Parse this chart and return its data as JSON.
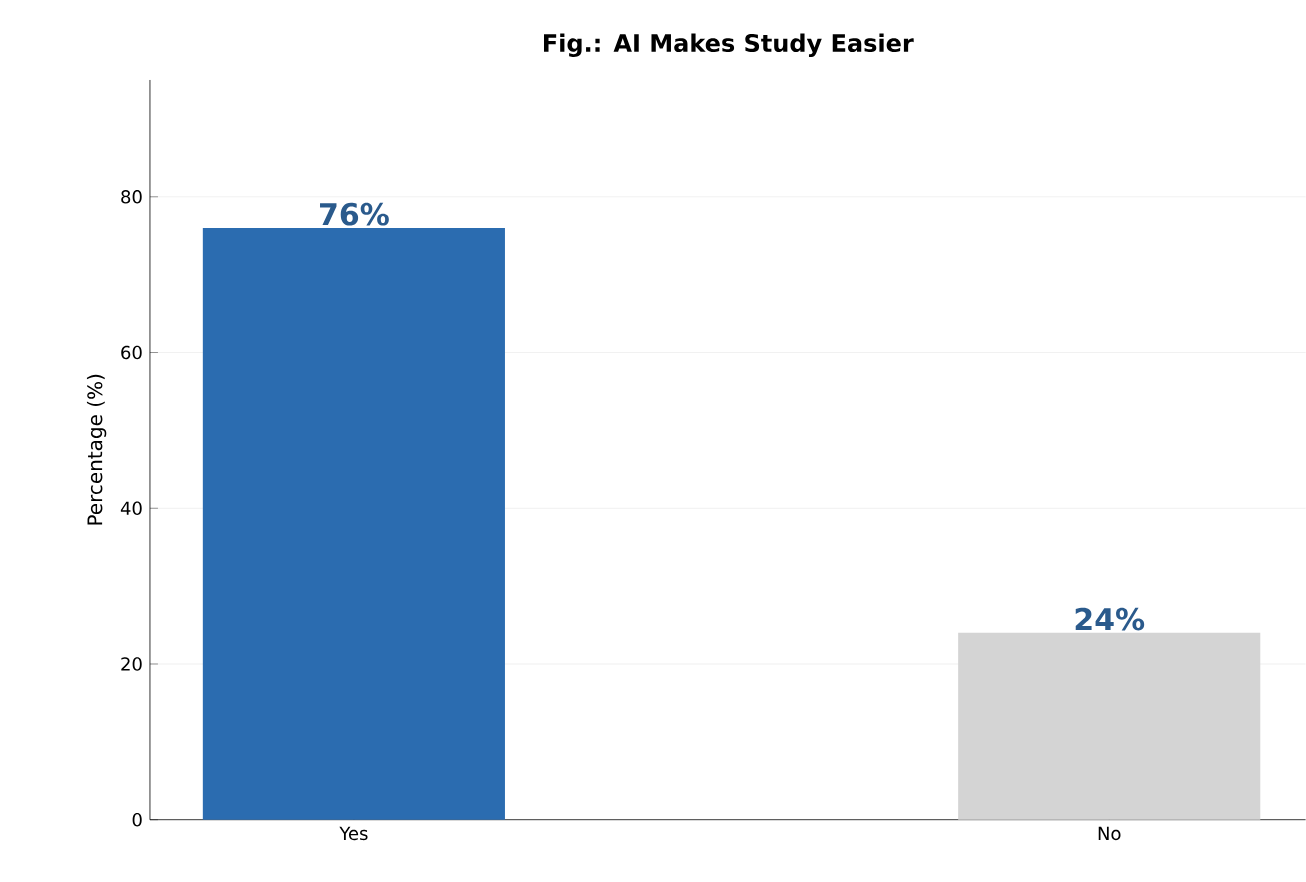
{
  "chart_data": {
    "type": "bar",
    "title": "Fig.: AI Makes Study Easier",
    "ylabel": "Percentage (%)",
    "categories": [
      "Yes",
      "No"
    ],
    "values": [
      76,
      24
    ],
    "colors": [
      "#2b6cb0",
      "#d4d4d4"
    ],
    "value_labels": [
      "76%",
      "24%"
    ],
    "ylim": [
      0,
      95
    ],
    "yticks": [
      0,
      20,
      40,
      60,
      80
    ],
    "grid": "y"
  }
}
